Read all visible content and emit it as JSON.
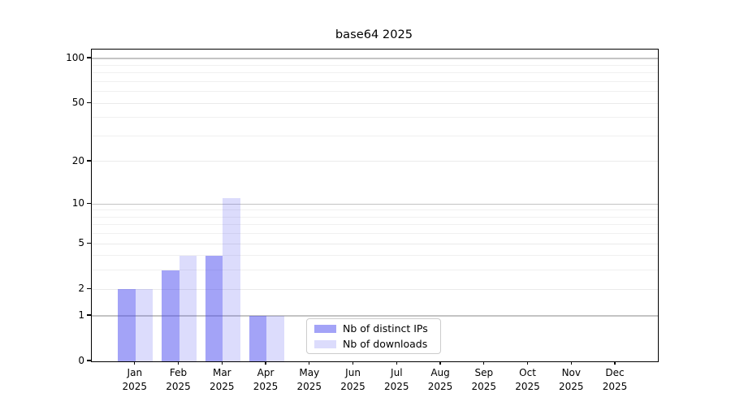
{
  "chart_data": {
    "type": "bar",
    "title": "base64 2025",
    "categories": [
      "Jan",
      "Feb",
      "Mar",
      "Apr",
      "May",
      "Jun",
      "Jul",
      "Aug",
      "Sep",
      "Oct",
      "Nov",
      "Dec"
    ],
    "category_year": "2025",
    "series": [
      {
        "name": "Nb of distinct IPs",
        "base_color": "#4444ee",
        "alpha": 0.49,
        "effective_color": "#a3a3f4",
        "values": [
          2,
          3,
          4,
          1,
          0,
          0,
          0,
          0,
          0,
          0,
          0,
          0
        ]
      },
      {
        "name": "Nb of downloads",
        "base_color": "#4444ee",
        "alpha": 0.19,
        "effective_color": "#dbdbfa",
        "values": [
          2,
          4,
          11,
          1,
          0,
          0,
          0,
          0,
          0,
          0,
          0,
          0
        ]
      }
    ],
    "y_scale": "log10(value+1)",
    "y_axis_ticks": [
      0,
      1,
      2,
      5,
      10,
      20,
      50,
      100
    ],
    "y_gridlines_major": [
      1,
      10,
      100
    ],
    "y_gridlines_light": [
      2,
      5,
      20,
      50
    ],
    "y_gridlines_minor": [
      3,
      4,
      6,
      7,
      8,
      9,
      30,
      40,
      60,
      70,
      80,
      90
    ],
    "ylim": [
      0,
      115
    ],
    "grid": "horizontal",
    "legend_position": "lower center"
  },
  "colors": {
    "background": "#ffffff",
    "axis": "#000000",
    "grid_major": "#c4c4c4",
    "grid_light": "#eaeaea",
    "grid_minor": "#f0f0f0",
    "bar_distinct_ips_effective": "#a3a3f4",
    "bar_downloads_effective": "#dbdbfa",
    "legend_border": "#cccccc"
  }
}
